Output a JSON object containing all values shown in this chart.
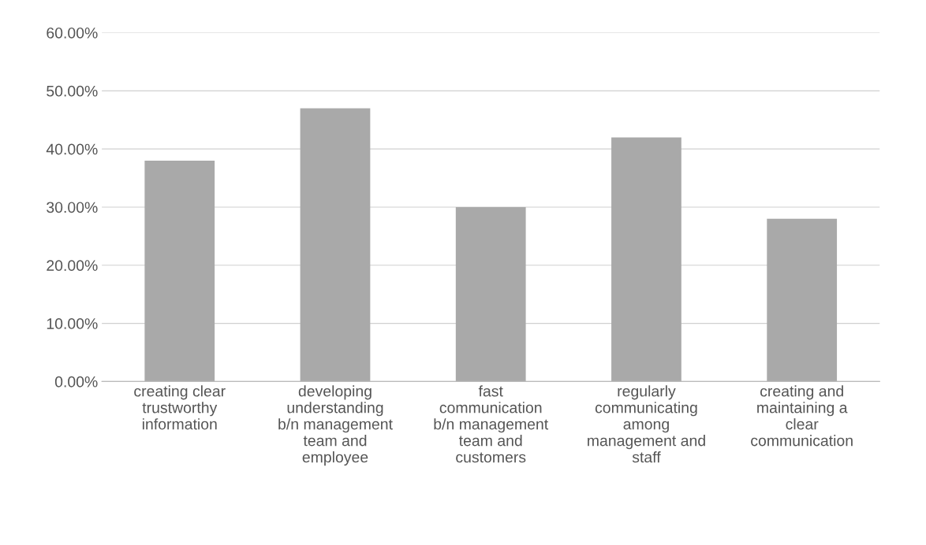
{
  "chart_data": {
    "type": "bar",
    "categories": [
      "creating clear\ntrustworthy\ninformation",
      "developing\nunderstanding\nb/n management\nteam and\nemployee",
      "fast\ncommunication\nb/n management\nteam and\ncustomers",
      "regularly\ncommunicating\namong\nmanagement and\nstaff",
      "creating and\nmaintaining a\nclear\ncommunication"
    ],
    "values": [
      38,
      47,
      30,
      42,
      28
    ],
    "color": "#a9a9a9",
    "ylim": [
      0,
      60
    ],
    "yticks": [
      {
        "value": 0,
        "label": "0.00%"
      },
      {
        "value": 10,
        "label": "10.00%"
      },
      {
        "value": 20,
        "label": "20.00%"
      },
      {
        "value": 30,
        "label": "30.00%"
      },
      {
        "value": 40,
        "label": "40.00%"
      },
      {
        "value": 50,
        "label": "50.00%"
      },
      {
        "value": 60,
        "label": "60.00%"
      }
    ],
    "grid": "y"
  }
}
